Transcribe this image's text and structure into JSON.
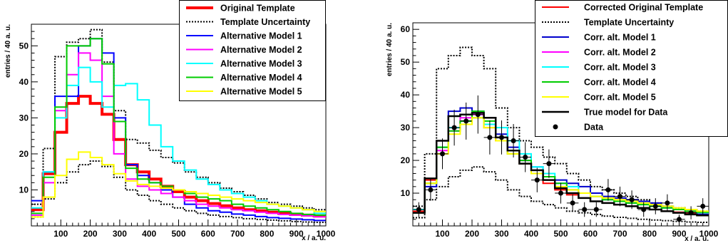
{
  "chart_data": [
    {
      "type": "histogram",
      "xlabel": "x / a. u.",
      "ylabel": "entries / 40 a. u.",
      "xlim": [
        0,
        1000
      ],
      "ylim": [
        0,
        56
      ],
      "x_ticks": [
        100,
        200,
        300,
        400,
        500,
        600,
        700,
        800,
        900,
        1000
      ],
      "y_ticks": [
        10,
        20,
        30,
        40,
        50
      ],
      "bin_edges": [
        0,
        40,
        80,
        120,
        160,
        200,
        240,
        280,
        320,
        360,
        400,
        440,
        480,
        520,
        560,
        600,
        640,
        680,
        720,
        760,
        800,
        840,
        880,
        920,
        960,
        1000
      ],
      "legend_position": "top-right",
      "series": [
        {
          "name": "Original Template",
          "color": "#ff0000",
          "style": "solid-thick",
          "values": [
            4.5,
            14.5,
            26,
            34,
            36,
            34,
            31,
            24,
            17,
            15,
            13,
            11,
            9.5,
            8,
            7,
            6.2,
            5.6,
            5,
            4.5,
            4.2,
            3.8,
            3.5,
            3.2,
            3,
            2.8
          ]
        },
        {
          "name": "Template Uncertainty",
          "color": "#000000",
          "style": "dotted",
          "values": [
            6,
            21.5,
            47,
            51,
            52,
            54.5,
            45.5,
            32,
            24,
            23,
            21,
            19,
            17.5,
            15,
            13.5,
            12,
            10.5,
            9.5,
            8.5,
            7.5,
            6.5,
            6,
            5.5,
            5,
            4.5
          ]
        },
        {
          "name": "Template Uncertainty lower",
          "color": "#000000",
          "style": "dotted",
          "values": [
            2.5,
            7.5,
            12,
            15,
            17,
            18,
            16.5,
            13.5,
            10,
            8.5,
            7,
            6,
            5,
            4.2,
            3.5,
            3,
            2.6,
            2.3,
            2,
            1.8,
            1.6,
            1.4,
            1.2,
            1.1,
            1
          ]
        },
        {
          "name": "Alternative Model 1",
          "color": "#0000ff",
          "style": "solid",
          "values": [
            7,
            15,
            36,
            36,
            50,
            52,
            48,
            30,
            17,
            14,
            12,
            10,
            8,
            6,
            5,
            4.2,
            3.8,
            3.3,
            3,
            2.6,
            2.3,
            2.1,
            1.9,
            1.7,
            1.5
          ]
        },
        {
          "name": "Alternative Model 2",
          "color": "#ff00ff",
          "style": "solid",
          "values": [
            3,
            12,
            32,
            42,
            48,
            46,
            36,
            20,
            13,
            11,
            10,
            9,
            8,
            7,
            6,
            5.5,
            5,
            4.5,
            4.2,
            3.8,
            3.5,
            3.2,
            3,
            2.8,
            2.5
          ]
        },
        {
          "name": "Alternative Model 3",
          "color": "#00ffff",
          "style": "solid",
          "values": [
            5,
            15,
            30,
            39,
            44,
            40,
            33,
            39,
            39.5,
            35,
            28,
            22,
            18,
            15.5,
            13,
            11.5,
            10,
            9,
            8,
            7,
            6,
            5.5,
            5,
            4.5,
            3.5
          ]
        },
        {
          "name": "Alternative Model 4",
          "color": "#00cc00",
          "style": "solid",
          "values": [
            3.5,
            13.5,
            33,
            50,
            50,
            52,
            45,
            29,
            16,
            13,
            12,
            11,
            10,
            9,
            8,
            7.5,
            7,
            6,
            5.5,
            5,
            4.5,
            4,
            3.5,
            3.2,
            3
          ]
        },
        {
          "name": "Alternative Model 5",
          "color": "#ffff00",
          "style": "solid",
          "values": [
            2.5,
            8,
            14,
            18.5,
            20.5,
            19,
            17,
            14.5,
            12.5,
            11.5,
            11,
            10.5,
            10,
            9.5,
            9,
            8.5,
            8,
            7.5,
            7,
            6.5,
            6,
            5.5,
            5,
            4.5,
            4
          ]
        }
      ]
    },
    {
      "type": "histogram",
      "xlabel": "x / a. u.",
      "ylabel": "entries / 40 a. u.",
      "xlim": [
        0,
        1000
      ],
      "ylim": [
        0,
        62
      ],
      "x_ticks": [
        100,
        200,
        300,
        400,
        500,
        600,
        700,
        800,
        900,
        1000
      ],
      "y_ticks": [
        10,
        20,
        30,
        40,
        50,
        60
      ],
      "bin_edges": [
        0,
        40,
        80,
        120,
        160,
        200,
        240,
        280,
        320,
        360,
        400,
        440,
        480,
        520,
        560,
        600,
        640,
        680,
        720,
        760,
        800,
        840,
        880,
        920,
        960,
        1000
      ],
      "legend_position": "top-right",
      "series": [
        {
          "name": "Corrected Original Template",
          "color": "#ff0000",
          "style": "solid",
          "values": [
            4.5,
            14,
            24,
            30,
            32,
            33,
            30,
            26,
            22,
            19,
            16,
            13,
            11,
            9.5,
            8.5,
            7.5,
            7,
            6.5,
            6,
            5.5,
            5,
            4.5,
            4.2,
            4,
            3.8
          ]
        },
        {
          "name": "Template Uncertainty",
          "color": "#000000",
          "style": "dotted",
          "values": [
            6,
            22,
            48,
            52,
            54.5,
            52,
            48,
            36,
            30,
            26,
            24,
            21,
            19,
            16,
            14,
            12,
            11,
            10,
            9,
            8,
            7,
            6,
            5.5,
            5,
            4.5
          ]
        },
        {
          "name": "Template Uncertainty lower",
          "color": "#000000",
          "style": "dotted",
          "values": [
            2.5,
            8,
            12,
            15,
            17,
            18,
            16.5,
            14,
            11,
            9,
            7.5,
            6.5,
            5.5,
            4.5,
            4,
            3.5,
            3,
            2.6,
            2.3,
            2,
            1.8,
            1.6,
            1.4,
            1.2,
            1.1
          ]
        },
        {
          "name": "Corr. alt. Model 1",
          "color": "#0000cc",
          "style": "solid",
          "values": [
            4,
            12,
            24,
            35,
            36,
            35,
            33,
            28,
            24,
            20,
            18,
            15,
            14,
            13,
            12,
            10,
            9,
            8.5,
            8,
            7.5,
            7,
            6,
            5,
            4.5,
            3.5
          ]
        },
        {
          "name": "Corr. alt. Model 2",
          "color": "#ff00ff",
          "style": "solid",
          "values": [
            5,
            13,
            23,
            29,
            33,
            34,
            31,
            27,
            23,
            20,
            17,
            15,
            13,
            11,
            10,
            9,
            8,
            7.5,
            7,
            6.5,
            6,
            5.5,
            5,
            4.5,
            4.2
          ]
        },
        {
          "name": "Corr. alt. Model 3",
          "color": "#00ffff",
          "style": "solid",
          "values": [
            5,
            13,
            24,
            30,
            32,
            33,
            31,
            30,
            26,
            22,
            18,
            16,
            13,
            12,
            10,
            9,
            8,
            7.5,
            7,
            6.5,
            6,
            5.5,
            5,
            4.5,
            4
          ]
        },
        {
          "name": "Corr. alt. Model 4",
          "color": "#00cc00",
          "style": "solid",
          "values": [
            4,
            13,
            24,
            29,
            32,
            35,
            32,
            27,
            22,
            20,
            17,
            15,
            13,
            11,
            10,
            9,
            8,
            7.5,
            7,
            6.5,
            6,
            5.5,
            5,
            4.5,
            4.2
          ]
        },
        {
          "name": "Corr. alt. Model 5",
          "color": "#ffff00",
          "style": "solid",
          "values": [
            4,
            13,
            22,
            28,
            31,
            33,
            30,
            26,
            22,
            19,
            16,
            14,
            12,
            11,
            10,
            9,
            8.5,
            8,
            7.5,
            7,
            6.5,
            6,
            5.5,
            5,
            4.5
          ]
        },
        {
          "name": "True model for Data",
          "color": "#000000",
          "style": "solid-thick",
          "values": [
            4,
            14.5,
            26,
            33.5,
            34,
            34.5,
            33,
            27,
            23,
            19,
            17,
            14,
            11.5,
            10,
            8.5,
            7.5,
            7,
            6.5,
            6,
            5.5,
            5,
            4.5,
            4,
            3.5,
            3.2
          ]
        },
        {
          "name": "Data",
          "color": "#000000",
          "style": "points",
          "x": [
            20,
            60,
            100,
            140,
            180,
            220,
            260,
            300,
            340,
            380,
            420,
            460,
            500,
            540,
            580,
            620,
            660,
            700,
            740,
            780,
            820,
            860,
            900,
            940,
            980
          ],
          "values": [
            5,
            11,
            22,
            30,
            32,
            34,
            27,
            27,
            26,
            21,
            14,
            19,
            10,
            7,
            5,
            5,
            11,
            9,
            8,
            5,
            6,
            7,
            2,
            4,
            6
          ]
        }
      ]
    }
  ]
}
